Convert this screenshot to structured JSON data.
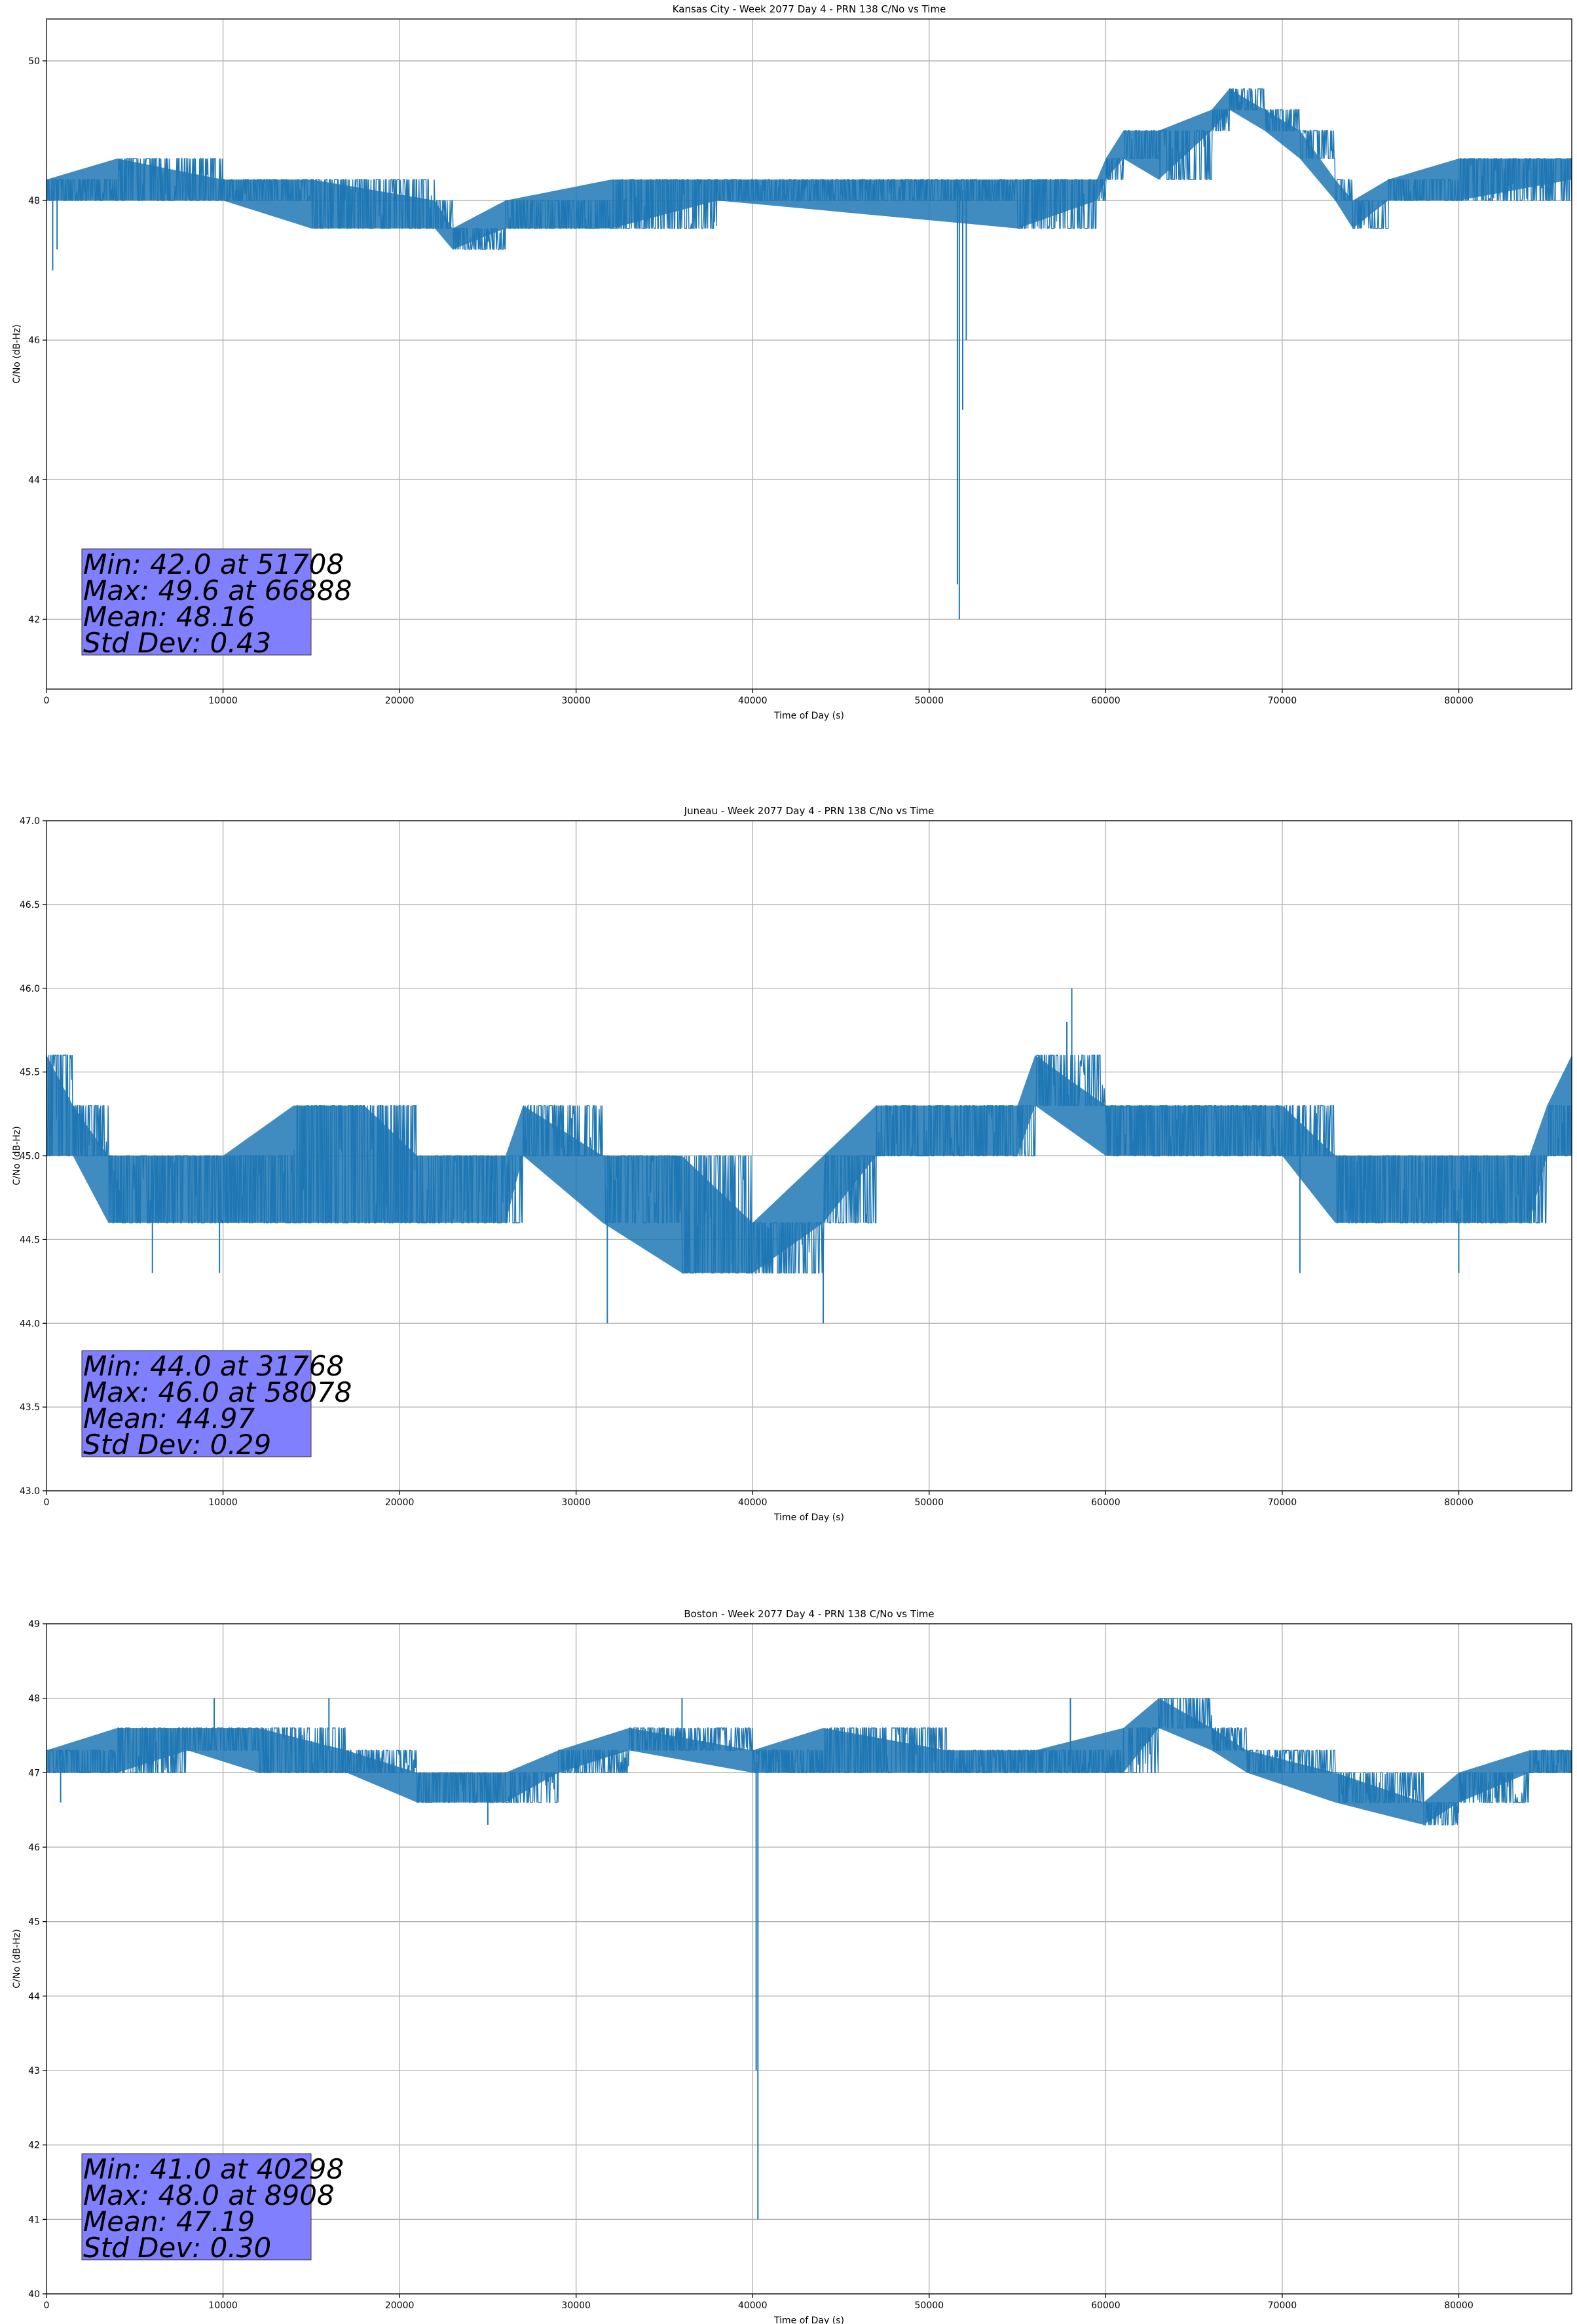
{
  "chart_data": [
    {
      "type": "line",
      "title": "Kansas City - Week 2077 Day 4 - PRN 138 C/No vs Time",
      "xlabel": "Time of Day (s)",
      "ylabel": "C/No (dB-Hz)",
      "xlim": [
        0,
        86400
      ],
      "ylim": [
        41.0,
        50.6
      ],
      "xticks": [
        0,
        10000,
        20000,
        30000,
        40000,
        50000,
        60000,
        70000,
        80000
      ],
      "xtick_labels": [
        "0",
        "10000",
        "20000",
        "30000",
        "40000",
        "50000",
        "60000",
        "70000",
        "80000"
      ],
      "yticks": [
        42,
        44,
        46,
        48,
        50
      ],
      "ytick_labels": [
        "42",
        "44",
        "46",
        "48",
        "50"
      ],
      "grid": true,
      "color": "#1f77b4",
      "series": [
        {
          "name": "C/No",
          "band": [
            {
              "x": 0,
              "lo": 48.0,
              "hi": 48.3
            },
            {
              "x": 4000,
              "lo": 48.0,
              "hi": 48.6
            },
            {
              "x": 10000,
              "lo": 48.0,
              "hi": 48.3
            },
            {
              "x": 15000,
              "lo": 47.6,
              "hi": 48.3
            },
            {
              "x": 22000,
              "lo": 47.6,
              "hi": 48.0
            },
            {
              "x": 23000,
              "lo": 47.3,
              "hi": 47.6
            },
            {
              "x": 26000,
              "lo": 47.6,
              "hi": 48.0
            },
            {
              "x": 32000,
              "lo": 47.6,
              "hi": 48.3
            },
            {
              "x": 38000,
              "lo": 48.0,
              "hi": 48.3
            },
            {
              "x": 55000,
              "lo": 47.6,
              "hi": 48.3
            },
            {
              "x": 59500,
              "lo": 48.0,
              "hi": 48.3
            },
            {
              "x": 60000,
              "lo": 48.3,
              "hi": 48.6
            },
            {
              "x": 61000,
              "lo": 48.6,
              "hi": 49.0
            },
            {
              "x": 63000,
              "lo": 48.3,
              "hi": 49.0
            },
            {
              "x": 66000,
              "lo": 49.0,
              "hi": 49.3
            },
            {
              "x": 67000,
              "lo": 49.3,
              "hi": 49.6
            },
            {
              "x": 69000,
              "lo": 49.0,
              "hi": 49.3
            },
            {
              "x": 71000,
              "lo": 48.6,
              "hi": 49.0
            },
            {
              "x": 73000,
              "lo": 48.0,
              "hi": 48.3
            },
            {
              "x": 74000,
              "lo": 47.6,
              "hi": 48.0
            },
            {
              "x": 76000,
              "lo": 48.0,
              "hi": 48.3
            },
            {
              "x": 80000,
              "lo": 48.0,
              "hi": 48.6
            },
            {
              "x": 86400,
              "lo": 48.3,
              "hi": 48.6
            }
          ],
          "spikes": [
            {
              "x": 350,
              "y": 47.0
            },
            {
              "x": 600,
              "y": 47.3
            },
            {
              "x": 51600,
              "y": 42.5
            },
            {
              "x": 51708,
              "y": 42.0
            },
            {
              "x": 51900,
              "y": 45.0
            },
            {
              "x": 52100,
              "y": 46.0
            }
          ]
        }
      ],
      "stats": [
        "Min: 42.0 at 51708",
        "Max: 49.6 at 66888",
        "Mean: 48.16",
        "Std Dev: 0.43"
      ]
    },
    {
      "type": "line",
      "title": "Juneau - Week 2077 Day 4 - PRN 138 C/No vs Time",
      "xlabel": "Time of Day (s)",
      "ylabel": "C/No (dB-Hz)",
      "xlim": [
        0,
        86400
      ],
      "ylim": [
        43.0,
        47.0
      ],
      "xticks": [
        0,
        10000,
        20000,
        30000,
        40000,
        50000,
        60000,
        70000,
        80000
      ],
      "xtick_labels": [
        "0",
        "10000",
        "20000",
        "30000",
        "40000",
        "50000",
        "60000",
        "70000",
        "80000"
      ],
      "yticks": [
        43.0,
        43.5,
        44.0,
        44.5,
        45.0,
        45.5,
        46.0,
        46.5,
        47.0
      ],
      "ytick_labels": [
        "43.0",
        "43.5",
        "44.0",
        "44.5",
        "45.0",
        "45.5",
        "46.0",
        "46.5",
        "47.0"
      ],
      "grid": true,
      "color": "#1f77b4",
      "series": [
        {
          "name": "C/No",
          "band": [
            {
              "x": 0,
              "lo": 45.0,
              "hi": 45.6
            },
            {
              "x": 1500,
              "lo": 45.0,
              "hi": 45.3
            },
            {
              "x": 3500,
              "lo": 44.6,
              "hi": 45.0
            },
            {
              "x": 5000,
              "lo": 44.6,
              "hi": 45.0
            },
            {
              "x": 10000,
              "lo": 44.6,
              "hi": 45.0
            },
            {
              "x": 14000,
              "lo": 44.6,
              "hi": 45.3
            },
            {
              "x": 18000,
              "lo": 44.6,
              "hi": 45.3
            },
            {
              "x": 21000,
              "lo": 44.6,
              "hi": 45.0
            },
            {
              "x": 26000,
              "lo": 44.6,
              "hi": 45.0
            },
            {
              "x": 27000,
              "lo": 45.0,
              "hi": 45.3
            },
            {
              "x": 31500,
              "lo": 44.6,
              "hi": 45.0
            },
            {
              "x": 36000,
              "lo": 44.3,
              "hi": 45.0
            },
            {
              "x": 40000,
              "lo": 44.3,
              "hi": 44.6
            },
            {
              "x": 44000,
              "lo": 44.6,
              "hi": 45.0
            },
            {
              "x": 47000,
              "lo": 45.0,
              "hi": 45.3
            },
            {
              "x": 55000,
              "lo": 45.0,
              "hi": 45.3
            },
            {
              "x": 56000,
              "lo": 45.3,
              "hi": 45.6
            },
            {
              "x": 60000,
              "lo": 45.0,
              "hi": 45.3
            },
            {
              "x": 70000,
              "lo": 45.0,
              "hi": 45.3
            },
            {
              "x": 73000,
              "lo": 44.6,
              "hi": 45.0
            },
            {
              "x": 84000,
              "lo": 44.6,
              "hi": 45.0
            },
            {
              "x": 85000,
              "lo": 45.0,
              "hi": 45.3
            },
            {
              "x": 86400,
              "lo": 45.0,
              "hi": 45.6
            }
          ],
          "spikes": [
            {
              "x": 6000,
              "y": 44.3
            },
            {
              "x": 9800,
              "y": 44.3
            },
            {
              "x": 31768,
              "y": 44.0
            },
            {
              "x": 44000,
              "y": 44.0
            },
            {
              "x": 58078,
              "y": 46.0
            },
            {
              "x": 57800,
              "y": 45.8
            },
            {
              "x": 71000,
              "y": 44.3
            },
            {
              "x": 80000,
              "y": 44.3
            }
          ]
        }
      ],
      "stats": [
        "Min: 44.0 at 31768",
        "Max: 46.0 at 58078",
        "Mean: 44.97",
        "Std Dev: 0.29"
      ]
    },
    {
      "type": "line",
      "title": "Boston - Week 2077 Day 4 - PRN 138 C/No vs Time",
      "xlabel": "Time of Day (s)",
      "ylabel": "C/No (dB-Hz)",
      "xlim": [
        0,
        86400
      ],
      "ylim": [
        40,
        49
      ],
      "xticks": [
        0,
        10000,
        20000,
        30000,
        40000,
        50000,
        60000,
        70000,
        80000
      ],
      "xtick_labels": [
        "0",
        "10000",
        "20000",
        "30000",
        "40000",
        "50000",
        "60000",
        "70000",
        "80000"
      ],
      "yticks": [
        40,
        41,
        42,
        43,
        44,
        45,
        46,
        47,
        48,
        49
      ],
      "ytick_labels": [
        "40",
        "41",
        "42",
        "43",
        "44",
        "45",
        "46",
        "47",
        "48",
        "49"
      ],
      "grid": true,
      "color": "#1f77b4",
      "series": [
        {
          "name": "C/No",
          "band": [
            {
              "x": 0,
              "lo": 47.0,
              "hi": 47.3
            },
            {
              "x": 4000,
              "lo": 47.0,
              "hi": 47.6
            },
            {
              "x": 8000,
              "lo": 47.3,
              "hi": 47.6
            },
            {
              "x": 12000,
              "lo": 47.0,
              "hi": 47.6
            },
            {
              "x": 17000,
              "lo": 47.0,
              "hi": 47.3
            },
            {
              "x": 21000,
              "lo": 46.6,
              "hi": 47.0
            },
            {
              "x": 26000,
              "lo": 46.6,
              "hi": 47.0
            },
            {
              "x": 29000,
              "lo": 47.0,
              "hi": 47.3
            },
            {
              "x": 33000,
              "lo": 47.3,
              "hi": 47.6
            },
            {
              "x": 40000,
              "lo": 47.0,
              "hi": 47.3
            },
            {
              "x": 44000,
              "lo": 47.0,
              "hi": 47.6
            },
            {
              "x": 51000,
              "lo": 47.0,
              "hi": 47.3
            },
            {
              "x": 56000,
              "lo": 47.0,
              "hi": 47.3
            },
            {
              "x": 61000,
              "lo": 47.0,
              "hi": 47.6
            },
            {
              "x": 63000,
              "lo": 47.6,
              "hi": 48.0
            },
            {
              "x": 66000,
              "lo": 47.3,
              "hi": 47.6
            },
            {
              "x": 68000,
              "lo": 47.0,
              "hi": 47.3
            },
            {
              "x": 73000,
              "lo": 46.6,
              "hi": 47.0
            },
            {
              "x": 78000,
              "lo": 46.3,
              "hi": 46.6
            },
            {
              "x": 80000,
              "lo": 46.6,
              "hi": 47.0
            },
            {
              "x": 84000,
              "lo": 47.0,
              "hi": 47.3
            },
            {
              "x": 86400,
              "lo": 47.0,
              "hi": 47.3
            }
          ],
          "spikes": [
            {
              "x": 800,
              "y": 46.6
            },
            {
              "x": 9500,
              "y": 48.0
            },
            {
              "x": 16000,
              "y": 48.0
            },
            {
              "x": 25000,
              "y": 46.3
            },
            {
              "x": 40298,
              "y": 41.0
            },
            {
              "x": 40200,
              "y": 43.0
            },
            {
              "x": 36000,
              "y": 48.0
            },
            {
              "x": 58000,
              "y": 48.0
            }
          ]
        }
      ],
      "stats": [
        "Min: 41.0 at 40298",
        "Max: 48.0 at 8908",
        "Mean: 47.19",
        "Std Dev: 0.30"
      ]
    }
  ]
}
